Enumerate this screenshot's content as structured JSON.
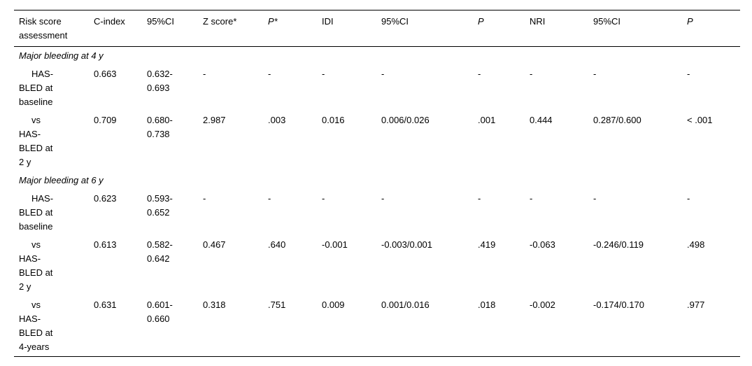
{
  "table": {
    "columns": [
      {
        "label": "Risk score assessment",
        "italic": false
      },
      {
        "label": "C-index",
        "italic": false
      },
      {
        "label": "95%CI",
        "italic": false
      },
      {
        "label": "Z score*",
        "italic": false
      },
      {
        "label": "P*",
        "italic": true
      },
      {
        "label": "IDI",
        "italic": false
      },
      {
        "label": "95%CI",
        "italic": false
      },
      {
        "label": "P",
        "italic": true
      },
      {
        "label": "NRI",
        "italic": false
      },
      {
        "label": "95%CI",
        "italic": false
      },
      {
        "label": "P",
        "italic": true
      }
    ],
    "rows": [
      {
        "type": "section",
        "label": "Major bleeding at 4 y"
      },
      {
        "type": "data",
        "label": "HAS-\nBLED at\nbaseline",
        "values": [
          "0.663",
          "0.632-\n0.693",
          "-",
          "-",
          "-",
          "-",
          "-",
          "-",
          "-",
          "-"
        ]
      },
      {
        "type": "data",
        "label": "vs\nHAS-\nBLED at\n2 y",
        "values": [
          "0.709",
          "0.680-\n0.738",
          "2.987",
          ".003",
          "0.016",
          "0.006/0.026",
          ".001",
          "0.444",
          "0.287/0.600",
          "<    .001"
        ]
      },
      {
        "type": "section",
        "label": "Major bleeding at 6 y"
      },
      {
        "type": "data",
        "label": "HAS-\nBLED at\nbaseline",
        "values": [
          "0.623",
          "0.593-\n0.652",
          "-",
          "-",
          "-",
          "-",
          "-",
          "-",
          "-",
          "-"
        ]
      },
      {
        "type": "data",
        "label": "vs\nHAS-\nBLED at\n2 y",
        "values": [
          "0.613",
          "0.582-\n0.642",
          "0.467",
          ".640",
          "-0.001",
          "-0.003/0.001",
          ".419",
          "-0.063",
          "-0.246/0.119",
          ".498"
        ]
      },
      {
        "type": "data",
        "label": "vs\nHAS-\nBLED at\n4-years",
        "values": [
          "0.631",
          "0.601-\n0.660",
          "0.318",
          ".751",
          "0.009",
          "0.001/0.016",
          ".018",
          "-0.002",
          "-0.174/0.170",
          ".977"
        ]
      }
    ]
  }
}
